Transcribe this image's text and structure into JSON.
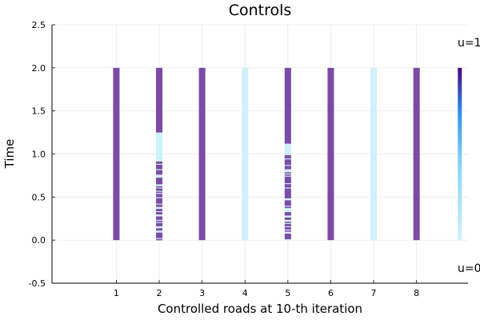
{
  "chart_data": {
    "type": "heatmap",
    "title": "Controls",
    "xlabel": "Controlled roads at 10-th iteration",
    "ylabel": "Time",
    "xlim": [
      -0.5,
      9.2
    ],
    "ylim": [
      -0.5,
      2.5
    ],
    "x_ticks": [
      "1",
      "2",
      "3",
      "4",
      "5",
      "6",
      "7",
      "8"
    ],
    "y_ticks": [
      "-0.5",
      "0.0",
      "0.5",
      "1.0",
      "1.5",
      "2.0",
      "2.5"
    ],
    "grid": true,
    "time_range": [
      0,
      2
    ],
    "colorbar": {
      "top_label": "u=1",
      "bottom_label": "u=0",
      "low_color": "#d0f0fb",
      "high_color": "#4b0082"
    },
    "colors": {
      "high": "#7b4aa6",
      "low": "#d0f0fb"
    },
    "roads": [
      {
        "road": 1,
        "pattern": "constant_high"
      },
      {
        "road": 2,
        "pattern": "mixed",
        "high_from": 1.25,
        "mixed_range": [
          0.0,
          1.0
        ]
      },
      {
        "road": 3,
        "pattern": "constant_high"
      },
      {
        "road": 4,
        "pattern": "constant_low"
      },
      {
        "road": 5,
        "pattern": "mixed",
        "high_from": 1.12,
        "mixed_range": [
          0.0,
          1.0
        ]
      },
      {
        "road": 6,
        "pattern": "constant_high"
      },
      {
        "road": 7,
        "pattern": "constant_low"
      },
      {
        "road": 8,
        "pattern": "constant_high"
      }
    ]
  }
}
